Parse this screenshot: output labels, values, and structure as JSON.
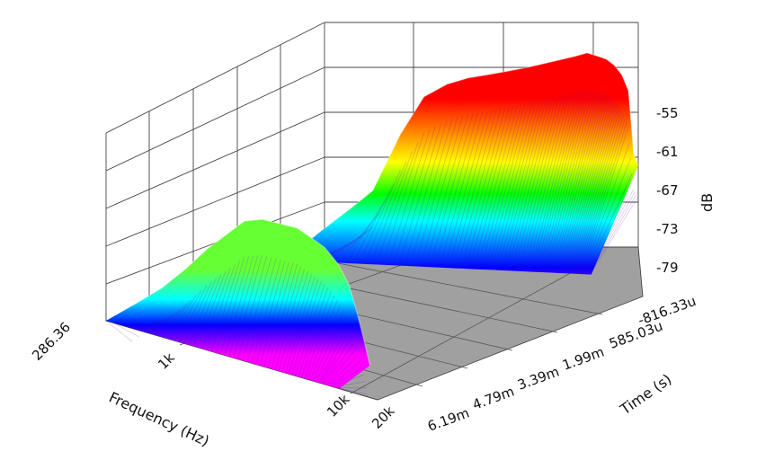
{
  "chart_data": {
    "type": "surface-3d",
    "title": "",
    "xlabel": "Frequency (Hz)",
    "ylabel": "Time (s)",
    "zlabel": "dB",
    "x_scale": "log",
    "x_range_hz": [
      286.36,
      20000
    ],
    "x_ticks": [
      "286.36",
      "1k",
      "10k",
      "20k"
    ],
    "y_range_s": [
      -0.00081633,
      0.00619
    ],
    "y_ticks": [
      "-816.33u",
      "585.03u",
      "1.99m",
      "3.39m",
      "4.79m",
      "6.19m"
    ],
    "z_range_db": [
      -85,
      -52
    ],
    "z_ticks": [
      "-55",
      "-61",
      "-67",
      "-73",
      "-79"
    ],
    "colormap": [
      "#ff00ff",
      "#0000ff",
      "#00ffff",
      "#00ff00",
      "#ffff00",
      "#ff8000",
      "#ff0000"
    ],
    "floor_color": "#a0a0a0",
    "grid": true,
    "ridges": [
      {
        "name": "front",
        "time_s": 0.00619,
        "freq_hz": [
          286.36,
          450,
          650,
          900,
          1200,
          1600,
          2100,
          2800,
          3600,
          4500,
          5500,
          6700,
          8000,
          9000,
          10000,
          11000
        ],
        "db": [
          -84,
          -80,
          -76,
          -72,
          -69,
          -66,
          -65,
          -65,
          -65,
          -66,
          -67,
          -69,
          -72,
          -76,
          -80,
          -84
        ]
      },
      {
        "name": "back",
        "time_s": -0.00081633,
        "freq_hz": [
          286.36,
          400,
          550,
          800,
          1100,
          1500,
          2000,
          2600,
          3300,
          4100,
          5000,
          6000,
          7200,
          8600,
          10000,
          11500,
          13000,
          14500,
          16000,
          17500,
          18800,
          20000
        ],
        "db": [
          -82,
          -79,
          -76,
          -67,
          -61,
          -59,
          -58,
          -57.5,
          -57,
          -56.5,
          -56,
          -55.5,
          -55,
          -54.5,
          -54,
          -54.5,
          -55,
          -56,
          -57.5,
          -60,
          -70,
          -72
        ]
      }
    ]
  }
}
